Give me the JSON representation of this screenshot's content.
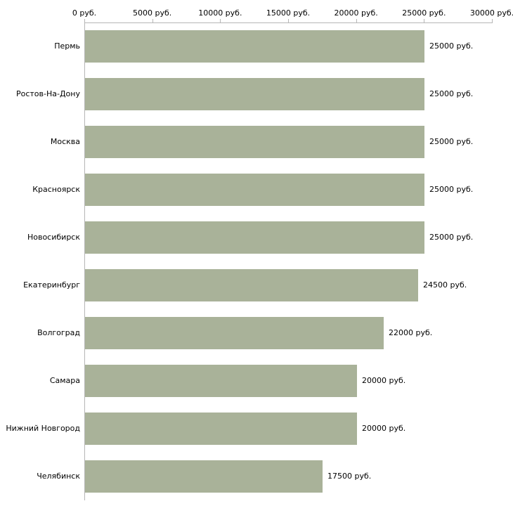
{
  "chart_data": {
    "type": "bar",
    "orientation": "horizontal",
    "title": "",
    "xlabel": "",
    "ylabel": "",
    "categories": [
      "Пермь",
      "Ростов-На-Дону",
      "Москва",
      "Красноярск",
      "Новосибирск",
      "Екатеринбург",
      "Волгоград",
      "Самара",
      "Нижний Новгород",
      "Челябинск"
    ],
    "values": [
      25000,
      25000,
      25000,
      25000,
      25000,
      24500,
      22000,
      20000,
      20000,
      17500
    ],
    "value_labels": [
      "25000 руб.",
      "25000 руб.",
      "25000 руб.",
      "25000 руб.",
      "25000 руб.",
      "24500 руб.",
      "22000 руб.",
      "20000 руб.",
      "20000 руб.",
      "17500 руб."
    ],
    "x_ticks": [
      0,
      5000,
      10000,
      15000,
      20000,
      25000,
      30000
    ],
    "x_tick_labels": [
      "0 руб.",
      "5000 руб.",
      "10000 руб.",
      "15000 руб.",
      "20000 руб.",
      "25000 руб.",
      "30000 руб."
    ],
    "xlim": [
      0,
      30000
    ],
    "grid": false,
    "legend": "none",
    "colors": {
      "bar_fill": "#a9b299",
      "axis_line": "#b6b6b6",
      "text": "#000000",
      "background": "#ffffff"
    }
  }
}
